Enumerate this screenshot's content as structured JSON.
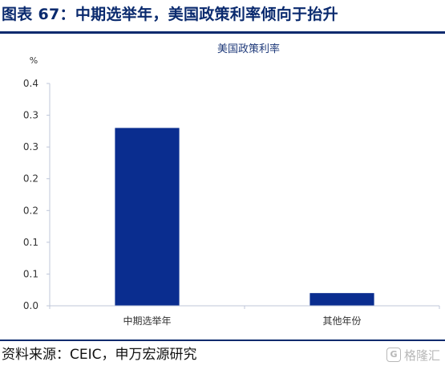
{
  "header": {
    "title": "图表 67：中期选举年，美国政策利率倾向于抬升"
  },
  "chart_data": {
    "type": "bar",
    "title": "美国政策利率",
    "ylabel": "%",
    "xlabel": "",
    "categories": [
      "中期选举年",
      "其他年份"
    ],
    "values": [
      0.28,
      0.02
    ],
    "ylim": [
      0.0,
      0.35
    ],
    "yticks": [
      0.0,
      0.05,
      0.1,
      0.15,
      0.2,
      0.25,
      0.3,
      0.35
    ],
    "ytick_labels": [
      "0.0",
      "0.1",
      "0.1",
      "0.2",
      "0.2",
      "0.3",
      "0.3",
      "0.4"
    ],
    "grid": false,
    "bar_color": "#0a2d8f"
  },
  "footer": {
    "source": "资料来源：CEIC，申万宏源研究",
    "watermark_icon": "G",
    "watermark_text": "格隆汇"
  }
}
